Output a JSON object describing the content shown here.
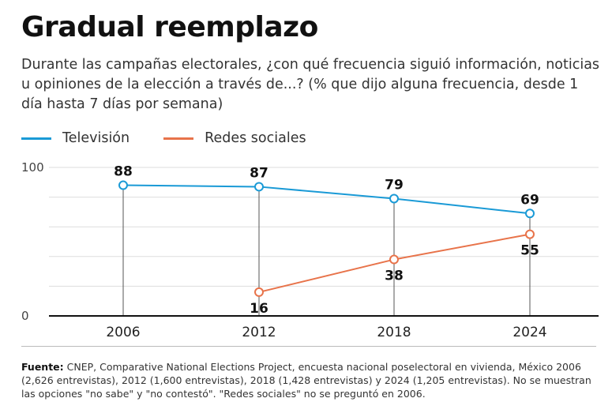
{
  "title": "Gradual reemplazo",
  "subtitle": "Durante las campañas electorales, ¿con qué frecuencia siguió información, noticias u opiniones de la elección a través de...? (% que dijo alguna frecuencia, desde 1 día hasta 7 días por semana)",
  "source_label": "Fuente:",
  "source_text": "CNEP, Comparative National Elections Project, encuesta nacional poselectoral en vivienda, México 2006 (2,626 entrevistas), 2012 (1,600 entrevistas), 2018 (1,428 entrevistas) y 2024 (1,205 entrevistas). No se muestran las opciones \"no sabe\" y \"no contestó\". \"Redes sociales\" no se preguntó en 2006.",
  "colors": {
    "television": "#1a9ad6",
    "redes": "#e8734a",
    "grid": "#dddddd",
    "axis": "#111111",
    "drop": "#555555"
  },
  "chart_data": {
    "type": "line",
    "categories": [
      "2006",
      "2012",
      "2018",
      "2024"
    ],
    "ylim": [
      0,
      100
    ],
    "yticks": [
      "0",
      "100"
    ],
    "legend_position": "top-left",
    "grid": true,
    "series": [
      {
        "name": "Televisión",
        "color": "#1a9ad6",
        "values": [
          88,
          87,
          79,
          69
        ],
        "labels": [
          "88",
          "87",
          "79",
          "69"
        ],
        "label_position": "above"
      },
      {
        "name": "Redes sociales",
        "color": "#e8734a",
        "values": [
          null,
          16,
          38,
          55
        ],
        "labels": [
          "",
          "16",
          "38",
          "55"
        ],
        "label_position": "below"
      }
    ]
  }
}
